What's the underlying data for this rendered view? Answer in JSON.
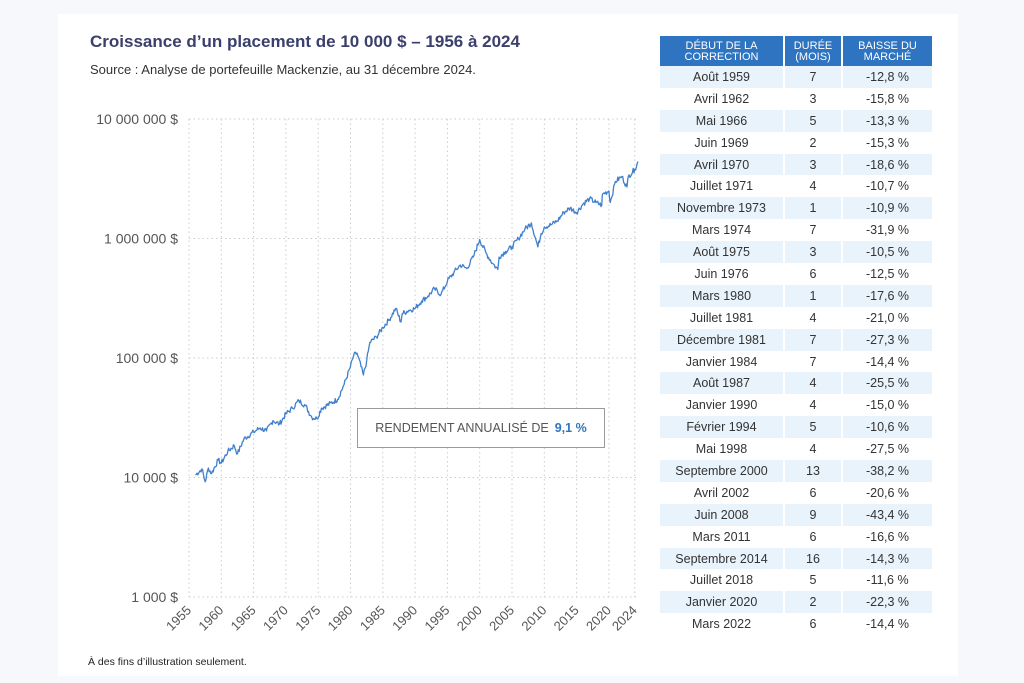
{
  "header": {
    "title": "Croissance d’un placement de 10 000 $ – 1956 à 2024",
    "subtitle": "Source : Analyse de portefeuille Mackenzie, au 31 décembre 2024."
  },
  "annotation": {
    "label": "RENDEMENT ANNUALISÉ DE",
    "value": "9,1 %"
  },
  "footnote": "À des fins d’illustration seulement.",
  "colors": {
    "line": "#3f7fcc",
    "accent": "#2f74c0",
    "table_header": "#2f74c0",
    "table_stripe": "#e8f3fc",
    "title": "#3a3f6b",
    "grid": "#c8ccd4"
  },
  "chart_data": {
    "type": "line",
    "title": "Croissance d’un placement de 10 000 $ – 1956 à 2024",
    "xlabel": "",
    "ylabel": "",
    "y_scale": "log",
    "ylim": [
      1000,
      10000000
    ],
    "xlim": [
      1955,
      2024.5
    ],
    "y_ticks": [
      1000,
      10000,
      100000,
      1000000,
      10000000
    ],
    "y_tick_labels": [
      "1 000 $",
      "10 000 $",
      "100 000 $",
      "1 000 000 $",
      "10 000 000 $"
    ],
    "x_ticks": [
      1955,
      1960,
      1965,
      1970,
      1975,
      1980,
      1985,
      1990,
      1995,
      2000,
      2005,
      2010,
      2015,
      2020,
      2024
    ],
    "x_tick_labels": [
      "1955",
      "1960",
      "1965",
      "1970",
      "1975",
      "1980",
      "1985",
      "1990",
      "1995",
      "2000",
      "2005",
      "2010",
      "2015",
      "2020",
      "2024"
    ],
    "grid": true,
    "series": [
      {
        "name": "",
        "x": [
          1956,
          1957,
          1957.5,
          1958,
          1958.5,
          1959.5,
          1960,
          1961,
          1962,
          1962.5,
          1963.5,
          1965,
          1966,
          1967,
          1968,
          1969,
          1970,
          1971,
          1972,
          1973,
          1974,
          1974.8,
          1975.5,
          1977,
          1978,
          1979,
          1980,
          1980.5,
          1981,
          1982,
          1982.5,
          1983,
          1984,
          1985,
          1986,
          1987,
          1987.8,
          1988,
          1989,
          1990,
          1991,
          1992,
          1993,
          1994,
          1995,
          1996,
          1997,
          1998,
          1999,
          2000,
          2001,
          2002,
          2002.8,
          2003,
          2004,
          2005,
          2006,
          2007,
          2008,
          2009,
          2009.5,
          2010,
          2011,
          2012,
          2013,
          2014,
          2015,
          2016,
          2017,
          2018,
          2018.9,
          2019,
          2020,
          2020.2,
          2021,
          2022,
          2022.8,
          2023,
          2024,
          2024.5
        ],
        "y": [
          10500,
          11800,
          9200,
          12000,
          10800,
          14000,
          13200,
          16500,
          18500,
          15800,
          21000,
          24000,
          26000,
          24500,
          30000,
          28000,
          34000,
          38000,
          44000,
          40000,
          32000,
          31000,
          38000,
          42000,
          45000,
          60000,
          85000,
          105000,
          110000,
          72000,
          95000,
          135000,
          150000,
          180000,
          210000,
          260000,
          200000,
          235000,
          250000,
          260000,
          300000,
          330000,
          380000,
          340000,
          440000,
          520000,
          600000,
          560000,
          700000,
          980000,
          750000,
          620000,
          550000,
          700000,
          780000,
          850000,
          1000000,
          1200000,
          1350000,
          850000,
          1100000,
          1250000,
          1300000,
          1400000,
          1650000,
          1800000,
          1650000,
          1950000,
          2150000,
          2000000,
          1900000,
          2350000,
          2500000,
          2000000,
          3000000,
          3300000,
          2700000,
          3300000,
          3800000,
          4400000
        ]
      }
    ]
  },
  "table": {
    "headers": [
      "DÉBUT DE LA CORRECTION",
      "DURÉE (MOIS)",
      "BAISSE DU MARCHÉ"
    ],
    "rows": [
      [
        "Août 1959",
        "7",
        "-12,8 %"
      ],
      [
        "Avril 1962",
        "3",
        "-15,8 %"
      ],
      [
        "Mai 1966",
        "5",
        "-13,3 %"
      ],
      [
        "Juin 1969",
        "2",
        "-15,3 %"
      ],
      [
        "Avril 1970",
        "3",
        "-18,6 %"
      ],
      [
        "Juillet 1971",
        "4",
        "-10,7 %"
      ],
      [
        "Novembre 1973",
        "1",
        "-10,9 %"
      ],
      [
        "Mars 1974",
        "7",
        "-31,9 %"
      ],
      [
        "Août 1975",
        "3",
        "-10,5 %"
      ],
      [
        "Juin 1976",
        "6",
        "-12,5 %"
      ],
      [
        "Mars 1980",
        "1",
        "-17,6 %"
      ],
      [
        "Juillet 1981",
        "4",
        "-21,0 %"
      ],
      [
        "Décembre 1981",
        "7",
        "-27,3 %"
      ],
      [
        "Janvier 1984",
        "7",
        "-14,4 %"
      ],
      [
        "Août 1987",
        "4",
        "-25,5 %"
      ],
      [
        "Janvier 1990",
        "4",
        "-15,0 %"
      ],
      [
        "Février 1994",
        "5",
        "-10,6 %"
      ],
      [
        "Mai 1998",
        "4",
        "-27,5 %"
      ],
      [
        "Septembre 2000",
        "13",
        "-38,2 %"
      ],
      [
        "Avril 2002",
        "6",
        "-20,6 %"
      ],
      [
        "Juin 2008",
        "9",
        "-43,4 %"
      ],
      [
        "Mars 2011",
        "6",
        "-16,6 %"
      ],
      [
        "Septembre 2014",
        "16",
        "-14,3 %"
      ],
      [
        "Juillet 2018",
        "5",
        "-11,6 %"
      ],
      [
        "Janvier 2020",
        "2",
        "-22,3 %"
      ],
      [
        "Mars 2022",
        "6",
        "-14,4 %"
      ]
    ]
  }
}
